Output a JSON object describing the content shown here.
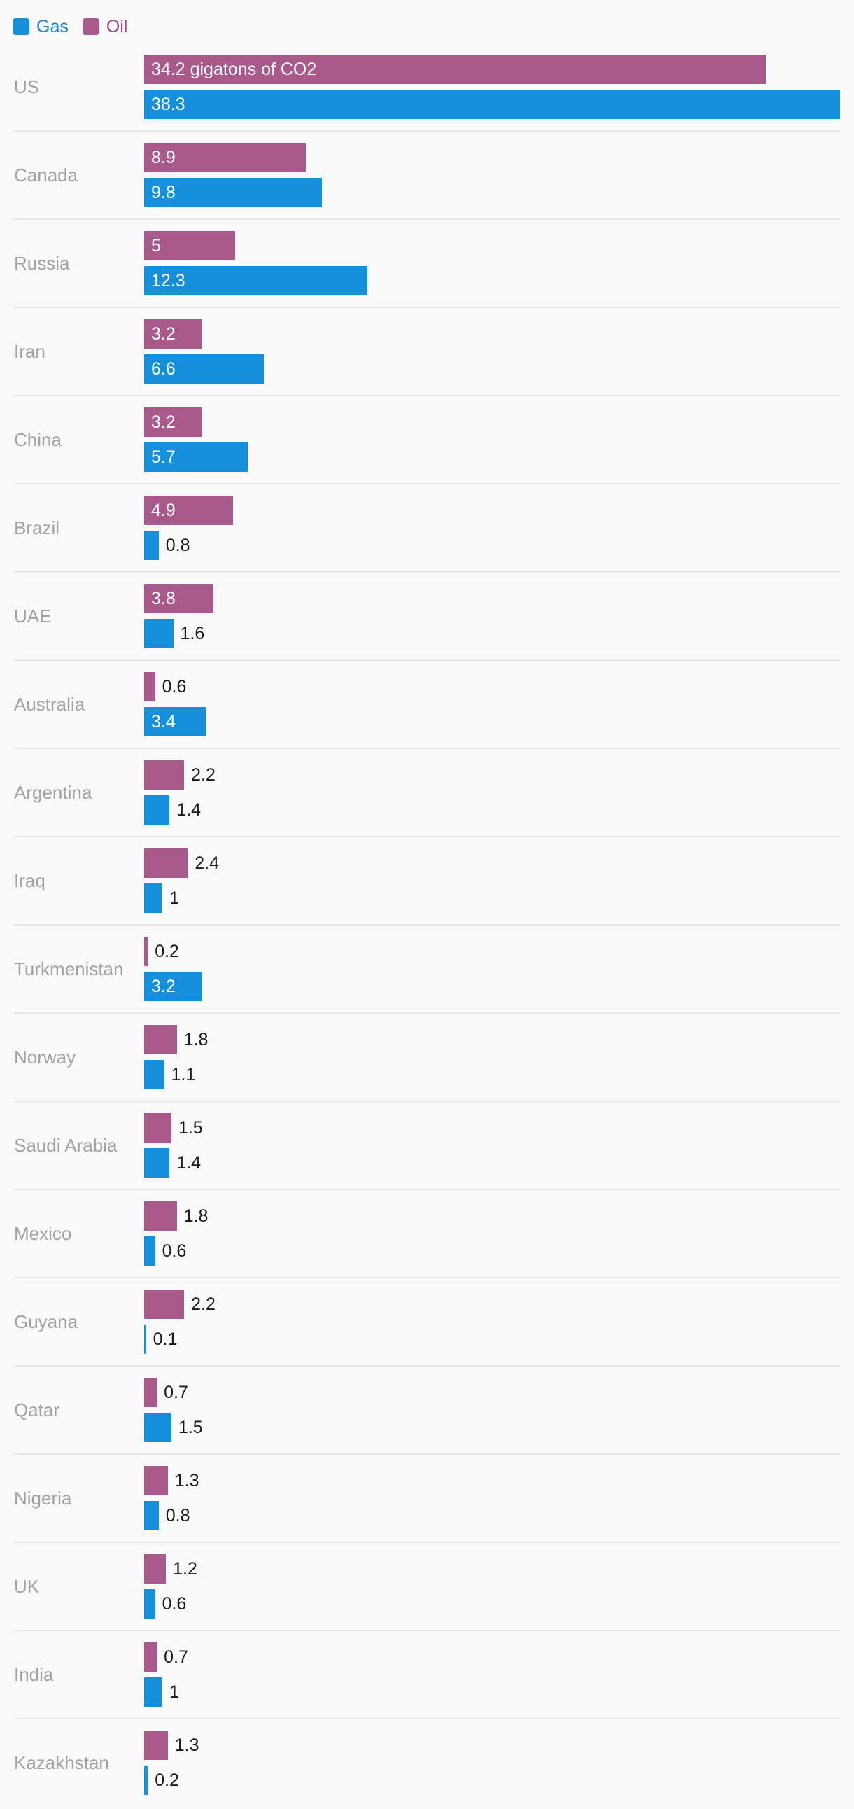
{
  "legend": {
    "gas_label": "Gas",
    "oil_label": "Oil"
  },
  "colors": {
    "gas": "#1790db",
    "oil": "#a85a8c",
    "gas_text": "#1f7fc2",
    "oil_text": "#9c4f84"
  },
  "first_oil_suffix": " gigatons of CO2",
  "chart_data": {
    "type": "bar",
    "orientation": "horizontal",
    "unit": "gigatons of CO2",
    "categories": [
      "US",
      "Canada",
      "Russia",
      "Iran",
      "China",
      "Brazil",
      "UAE",
      "Australia",
      "Argentina",
      "Iraq",
      "Turkmenistan",
      "Norway",
      "Saudi Arabia",
      "Mexico",
      "Guyana",
      "Qatar",
      "Nigeria",
      "UK",
      "India",
      "Kazakhstan"
    ],
    "series": [
      {
        "name": "Oil",
        "values": [
          34.2,
          8.9,
          5,
          3.2,
          3.2,
          4.9,
          3.8,
          0.6,
          2.2,
          2.4,
          0.2,
          1.8,
          1.5,
          1.8,
          2.2,
          0.7,
          1.3,
          1.2,
          0.7,
          1.3
        ]
      },
      {
        "name": "Gas",
        "values": [
          38.3,
          9.8,
          12.3,
          6.6,
          5.7,
          0.8,
          1.6,
          3.4,
          1.4,
          1,
          3.2,
          1.1,
          1.4,
          0.6,
          0.1,
          1.5,
          0.8,
          0.6,
          1,
          0.2
        ]
      }
    ],
    "xlim": [
      0,
      38.3
    ],
    "grid": false,
    "legend_position": "top-left"
  }
}
